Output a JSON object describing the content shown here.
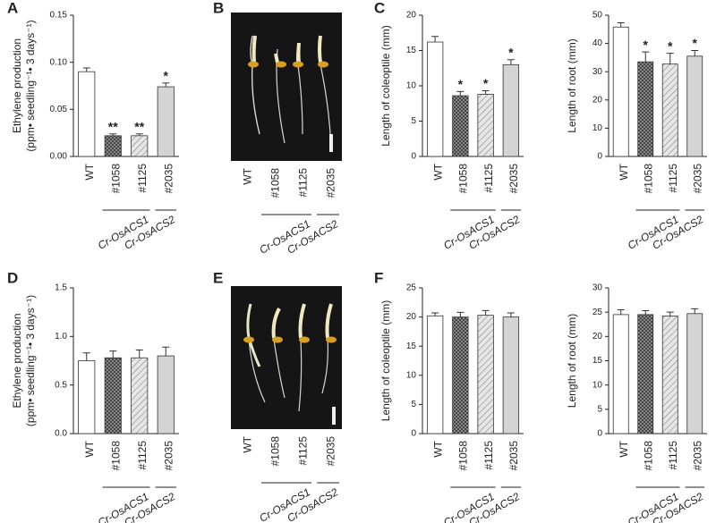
{
  "chart_data": [
    {
      "type": "bar",
      "panel": "A",
      "ylabel": [
        "Ethylene production",
        "(ppm• seedling⁻¹• 3 days⁻¹)"
      ],
      "categories": [
        "WT",
        "#1058",
        "#1125",
        "#2035"
      ],
      "category_groups": [
        null,
        "Cr-OsACS1",
        "Cr-OsACS1",
        "Cr-OsACS2"
      ],
      "values": [
        0.09,
        0.022,
        0.022,
        0.074
      ],
      "errors": [
        0.004,
        0.002,
        0.002,
        0.004
      ],
      "annotations": [
        null,
        "**",
        "**",
        "*"
      ],
      "fills": [
        "white",
        "crosshatch",
        "hatch",
        "gray"
      ],
      "ylim": [
        0,
        0.15
      ],
      "yticks": [
        {
          "value": 0,
          "label": "0.00"
        },
        {
          "value": 0.05,
          "label": "0.05"
        },
        {
          "value": 0.1,
          "label": "0.10"
        },
        {
          "value": 0.15,
          "label": "0.15"
        }
      ]
    },
    {
      "type": "bar",
      "panel": "C",
      "ylabel": [
        "Length of coleoptile (mm)"
      ],
      "categories": [
        "WT",
        "#1058",
        "#1125",
        "#2035"
      ],
      "category_groups": [
        null,
        "Cr-OsACS1",
        "Cr-OsACS1",
        "Cr-OsACS2"
      ],
      "values": [
        16.2,
        8.6,
        8.8,
        13.0
      ],
      "errors": [
        0.8,
        0.6,
        0.5,
        0.7
      ],
      "annotations": [
        null,
        "*",
        "*",
        "*"
      ],
      "fills": [
        "white",
        "crosshatch",
        "hatch",
        "gray"
      ],
      "ylim": [
        0,
        20
      ],
      "yticks": [
        0,
        5,
        10,
        15,
        20
      ]
    },
    {
      "type": "bar",
      "ylabel": [
        "Length of root (mm)"
      ],
      "categories": [
        "WT",
        "#1058",
        "#1125",
        "#2035"
      ],
      "category_groups": [
        null,
        "Cr-OsACS1",
        "Cr-OsACS1",
        "Cr-OsACS2"
      ],
      "values": [
        45.8,
        33.5,
        32.7,
        35.5
      ],
      "errors": [
        1.5,
        3.5,
        3.8,
        2.0
      ],
      "annotations": [
        null,
        "*",
        "*",
        "*"
      ],
      "fills": [
        "white",
        "crosshatch",
        "hatch",
        "gray"
      ],
      "ylim": [
        0,
        50
      ],
      "yticks": [
        0,
        10,
        20,
        30,
        40,
        50
      ]
    },
    {
      "type": "bar",
      "panel": "D",
      "ylabel": [
        "Ethylene production",
        "(ppm• seedling⁻¹• 3 days⁻¹)"
      ],
      "categories": [
        "WT",
        "#1058",
        "#1125",
        "#2035"
      ],
      "category_groups": [
        null,
        "Cr-OsACS1",
        "Cr-OsACS1",
        "Cr-OsACS2"
      ],
      "values": [
        0.75,
        0.78,
        0.78,
        0.8
      ],
      "errors": [
        0.08,
        0.07,
        0.08,
        0.09
      ],
      "fills": [
        "white",
        "crosshatch",
        "hatch",
        "gray"
      ],
      "ylim": [
        0,
        1.5
      ],
      "yticks": [
        {
          "value": 0,
          "label": "0.0"
        },
        0.5,
        {
          "value": 1,
          "label": "1.0"
        },
        1.5
      ]
    },
    {
      "type": "bar",
      "panel": "F",
      "ylabel": [
        "Length of coleoptile (mm)"
      ],
      "categories": [
        "WT",
        "#1058",
        "#1125",
        "#2035"
      ],
      "category_groups": [
        null,
        "Cr-OsACS1",
        "Cr-OsACS1",
        "Cr-OsACS2"
      ],
      "values": [
        20.2,
        20.0,
        20.3,
        20.0
      ],
      "errors": [
        0.5,
        0.8,
        0.8,
        0.7
      ],
      "fills": [
        "white",
        "crosshatch",
        "hatch",
        "gray"
      ],
      "ylim": [
        0,
        25
      ],
      "yticks": [
        0,
        5,
        10,
        15,
        20,
        25
      ]
    },
    {
      "type": "bar",
      "ylabel": [
        "Length of root (mm)"
      ],
      "categories": [
        "WT",
        "#1058",
        "#1125",
        "#2035"
      ],
      "category_groups": [
        null,
        "Cr-OsACS1",
        "Cr-OsACS1",
        "Cr-OsACS2"
      ],
      "values": [
        24.5,
        24.5,
        24.2,
        24.7
      ],
      "errors": [
        1.0,
        0.8,
        0.8,
        1.0
      ],
      "fills": [
        "white",
        "crosshatch",
        "hatch",
        "gray"
      ],
      "ylim": [
        0,
        30
      ],
      "yticks": [
        0,
        5,
        10,
        15,
        20,
        25,
        30
      ]
    }
  ],
  "photos": [
    {
      "panel": "B",
      "categories": [
        "WT",
        "#1058",
        "#1125",
        "#2035"
      ],
      "category_groups": [
        null,
        "Cr-OsACS1",
        "Cr-OsACS1",
        "Cr-OsACS2"
      ]
    },
    {
      "panel": "E",
      "categories": [
        "WT",
        "#1058",
        "#1125",
        "#2035"
      ],
      "category_groups": [
        null,
        "Cr-OsACS1",
        "Cr-OsACS1",
        "Cr-OsACS2"
      ]
    }
  ]
}
